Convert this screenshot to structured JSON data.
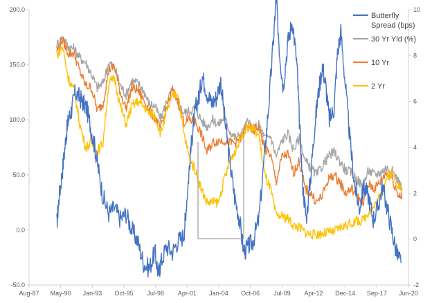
{
  "chart_data": {
    "type": "line",
    "left_axis": {
      "min": -50,
      "max": 200,
      "step": 50,
      "ticks": [
        "-50.0",
        "0.0",
        "50.0",
        "100.0",
        "150.0",
        "200.0"
      ]
    },
    "right_axis": {
      "min": -2,
      "max": 10,
      "step": 2,
      "ticks": [
        "-2",
        "0",
        "2",
        "4",
        "6",
        "8",
        "10"
      ]
    },
    "x_axis": {
      "ticks": [
        "Aug-87",
        "May-90",
        "Jan-93",
        "Oct-95",
        "Jul-98",
        "Apr-01",
        "Jan-04",
        "Oct-06",
        "Jul-09",
        "Apr-12",
        "Dec-14",
        "Sep-17",
        "Jun-20"
      ],
      "start_year": 1987.6,
      "end_year": 2020.45
    },
    "grid": false,
    "legend": "top-right",
    "series": [
      {
        "name_lines": [
          "Butterfly",
          "Spread (bps)"
        ],
        "axis": "left",
        "color": "#4472C4",
        "x": [
          1990.0,
          1990.2,
          1990.5,
          1990.8,
          1991.0,
          1991.3,
          1991.6,
          1992.0,
          1992.3,
          1992.6,
          1993.0,
          1993.3,
          1993.6,
          1994.0,
          1994.5,
          1995.0,
          1995.5,
          1996.0,
          1996.5,
          1997.0,
          1997.5,
          1998.0,
          1998.5,
          1998.8,
          1999.0,
          1999.5,
          2000.0,
          2000.5,
          2001.0,
          2001.2,
          2001.5,
          2001.8,
          2002.0,
          2002.3,
          2002.6,
          2003.0,
          2003.4,
          2003.8,
          2004.2,
          2004.6,
          2005.0,
          2005.4,
          2005.8,
          2006.2,
          2006.6,
          2007.0,
          2007.5,
          2008.0,
          2008.4,
          2008.8,
          2009.0,
          2009.3,
          2009.6,
          2010.0,
          2010.4,
          2010.8,
          2011.0,
          2011.3,
          2011.6,
          2012.0,
          2012.3,
          2012.6,
          2013.0,
          2013.3,
          2013.6,
          2014.0,
          2014.3,
          2014.6,
          2015.0,
          2015.4,
          2015.8,
          2016.2,
          2016.6,
          2017.0,
          2017.4,
          2017.8,
          2018.2,
          2018.6,
          2019.0,
          2019.4,
          2019.8
        ],
        "y": [
          5,
          30,
          55,
          85,
          100,
          110,
          125,
          120,
          115,
          110,
          90,
          75,
          55,
          30,
          15,
          20,
          10,
          15,
          0,
          -10,
          -30,
          -35,
          -20,
          -40,
          -30,
          -15,
          -20,
          -10,
          -5,
          20,
          60,
          95,
          110,
          120,
          140,
          125,
          115,
          120,
          135,
          95,
          60,
          30,
          10,
          -20,
          -15,
          -10,
          10,
          70,
          120,
          180,
          210,
          160,
          130,
          170,
          190,
          150,
          100,
          40,
          10,
          50,
          90,
          120,
          150,
          130,
          100,
          110,
          160,
          180,
          130,
          80,
          40,
          20,
          40,
          30,
          10,
          20,
          40,
          20,
          0,
          -20,
          -30
        ]
      },
      {
        "name": "30 Yr Yld (%)",
        "axis": "right",
        "color": "#A5A5A5",
        "x": [
          1990.0,
          1990.5,
          1991.0,
          1991.5,
          1992.0,
          1992.5,
          1993.0,
          1993.5,
          1994.0,
          1994.5,
          1995.0,
          1995.5,
          1996.0,
          1996.5,
          1997.0,
          1997.5,
          1998.0,
          1998.5,
          1999.0,
          1999.5,
          2000.0,
          2000.5,
          2001.0,
          2001.5,
          2002.0,
          2002.5,
          2003.0,
          2003.5,
          2004.0,
          2004.5,
          2005.0,
          2005.5,
          2006.0,
          2006.5,
          2007.0,
          2007.5,
          2008.0,
          2008.5,
          2009.0,
          2009.5,
          2010.0,
          2010.5,
          2011.0,
          2011.5,
          2012.0,
          2012.5,
          2013.0,
          2013.5,
          2014.0,
          2014.5,
          2015.0,
          2015.5,
          2016.0,
          2016.5,
          2017.0,
          2017.5,
          2018.0,
          2018.5,
          2019.0,
          2019.5,
          2019.9
        ],
        "y": [
          8.5,
          8.8,
          8.4,
          8.3,
          7.9,
          7.7,
          7.2,
          6.6,
          6.8,
          7.7,
          7.5,
          6.7,
          6.3,
          6.9,
          6.8,
          6.5,
          5.9,
          5.8,
          5.2,
          6.0,
          6.5,
          5.9,
          5.5,
          5.6,
          5.7,
          5.2,
          4.9,
          5.2,
          5.0,
          5.3,
          4.7,
          4.4,
          4.6,
          5.1,
          4.8,
          5.0,
          4.4,
          4.5,
          3.6,
          4.3,
          4.6,
          3.9,
          4.4,
          3.4,
          3.1,
          2.8,
          3.2,
          3.6,
          3.8,
          3.4,
          3.0,
          2.9,
          2.6,
          2.3,
          3.0,
          2.8,
          2.9,
          3.1,
          3.0,
          2.6,
          2.2
        ]
      },
      {
        "name": "10 Yr",
        "axis": "right",
        "color": "#ED7D31",
        "x": [
          1990.0,
          1990.5,
          1991.0,
          1991.5,
          1992.0,
          1992.5,
          1993.0,
          1993.5,
          1994.0,
          1994.5,
          1995.0,
          1995.5,
          1996.0,
          1996.5,
          1997.0,
          1997.5,
          1998.0,
          1998.5,
          1999.0,
          1999.5,
          2000.0,
          2000.5,
          2001.0,
          2001.5,
          2002.0,
          2002.5,
          2003.0,
          2003.5,
          2004.0,
          2004.5,
          2005.0,
          2005.5,
          2006.0,
          2006.5,
          2007.0,
          2007.5,
          2008.0,
          2008.5,
          2009.0,
          2009.5,
          2010.0,
          2010.5,
          2011.0,
          2011.5,
          2012.0,
          2012.5,
          2013.0,
          2013.5,
          2014.0,
          2014.5,
          2015.0,
          2015.5,
          2016.0,
          2016.5,
          2017.0,
          2017.5,
          2018.0,
          2018.5,
          2019.0,
          2019.5,
          2019.9
        ],
        "y": [
          8.2,
          8.7,
          8.1,
          8.1,
          7.3,
          6.7,
          6.6,
          5.6,
          5.9,
          7.4,
          7.5,
          6.4,
          5.7,
          6.6,
          6.5,
          6.1,
          5.6,
          5.3,
          4.8,
          5.7,
          6.5,
          6.0,
          5.1,
          5.2,
          5.1,
          4.6,
          3.8,
          4.2,
          4.3,
          4.3,
          4.2,
          4.2,
          4.4,
          5.0,
          4.7,
          4.9,
          3.9,
          3.7,
          2.5,
          3.6,
          3.7,
          2.9,
          3.4,
          2.2,
          2.0,
          1.6,
          1.9,
          2.6,
          2.8,
          2.5,
          2.0,
          2.2,
          1.9,
          1.5,
          2.4,
          2.2,
          2.5,
          2.9,
          2.7,
          2.0,
          1.8
        ]
      },
      {
        "name": "2 Yr",
        "axis": "right",
        "color": "#FFC000",
        "x": [
          1990.0,
          1990.5,
          1991.0,
          1991.5,
          1992.0,
          1992.5,
          1993.0,
          1993.5,
          1994.0,
          1994.5,
          1995.0,
          1995.5,
          1996.0,
          1996.5,
          1997.0,
          1997.5,
          1998.0,
          1998.5,
          1999.0,
          1999.5,
          2000.0,
          2000.5,
          2001.0,
          2001.5,
          2002.0,
          2002.5,
          2003.0,
          2003.5,
          2004.0,
          2004.5,
          2005.0,
          2005.5,
          2006.0,
          2006.5,
          2007.0,
          2007.5,
          2008.0,
          2008.5,
          2009.0,
          2009.5,
          2010.0,
          2010.5,
          2011.0,
          2011.5,
          2012.0,
          2012.5,
          2013.0,
          2013.5,
          2014.0,
          2014.5,
          2015.0,
          2015.5,
          2016.0,
          2016.5,
          2017.0,
          2017.5,
          2018.0,
          2018.5,
          2019.0,
          2019.5,
          2019.9
        ],
        "y": [
          8.0,
          8.4,
          7.0,
          6.5,
          5.0,
          4.0,
          4.2,
          3.8,
          4.2,
          6.8,
          7.0,
          5.8,
          5.0,
          5.8,
          6.0,
          5.8,
          5.5,
          5.4,
          4.6,
          5.5,
          6.2,
          6.4,
          4.6,
          3.5,
          3.0,
          2.2,
          1.6,
          1.6,
          1.6,
          2.6,
          3.4,
          3.9,
          4.5,
          4.9,
          4.8,
          4.5,
          2.8,
          2.2,
          1.0,
          1.0,
          0.9,
          0.6,
          0.5,
          0.3,
          0.2,
          0.2,
          0.25,
          0.3,
          0.3,
          0.5,
          0.6,
          0.7,
          0.8,
          0.8,
          1.2,
          1.4,
          1.9,
          2.6,
          2.9,
          2.4,
          2.1
        ]
      }
    ]
  }
}
